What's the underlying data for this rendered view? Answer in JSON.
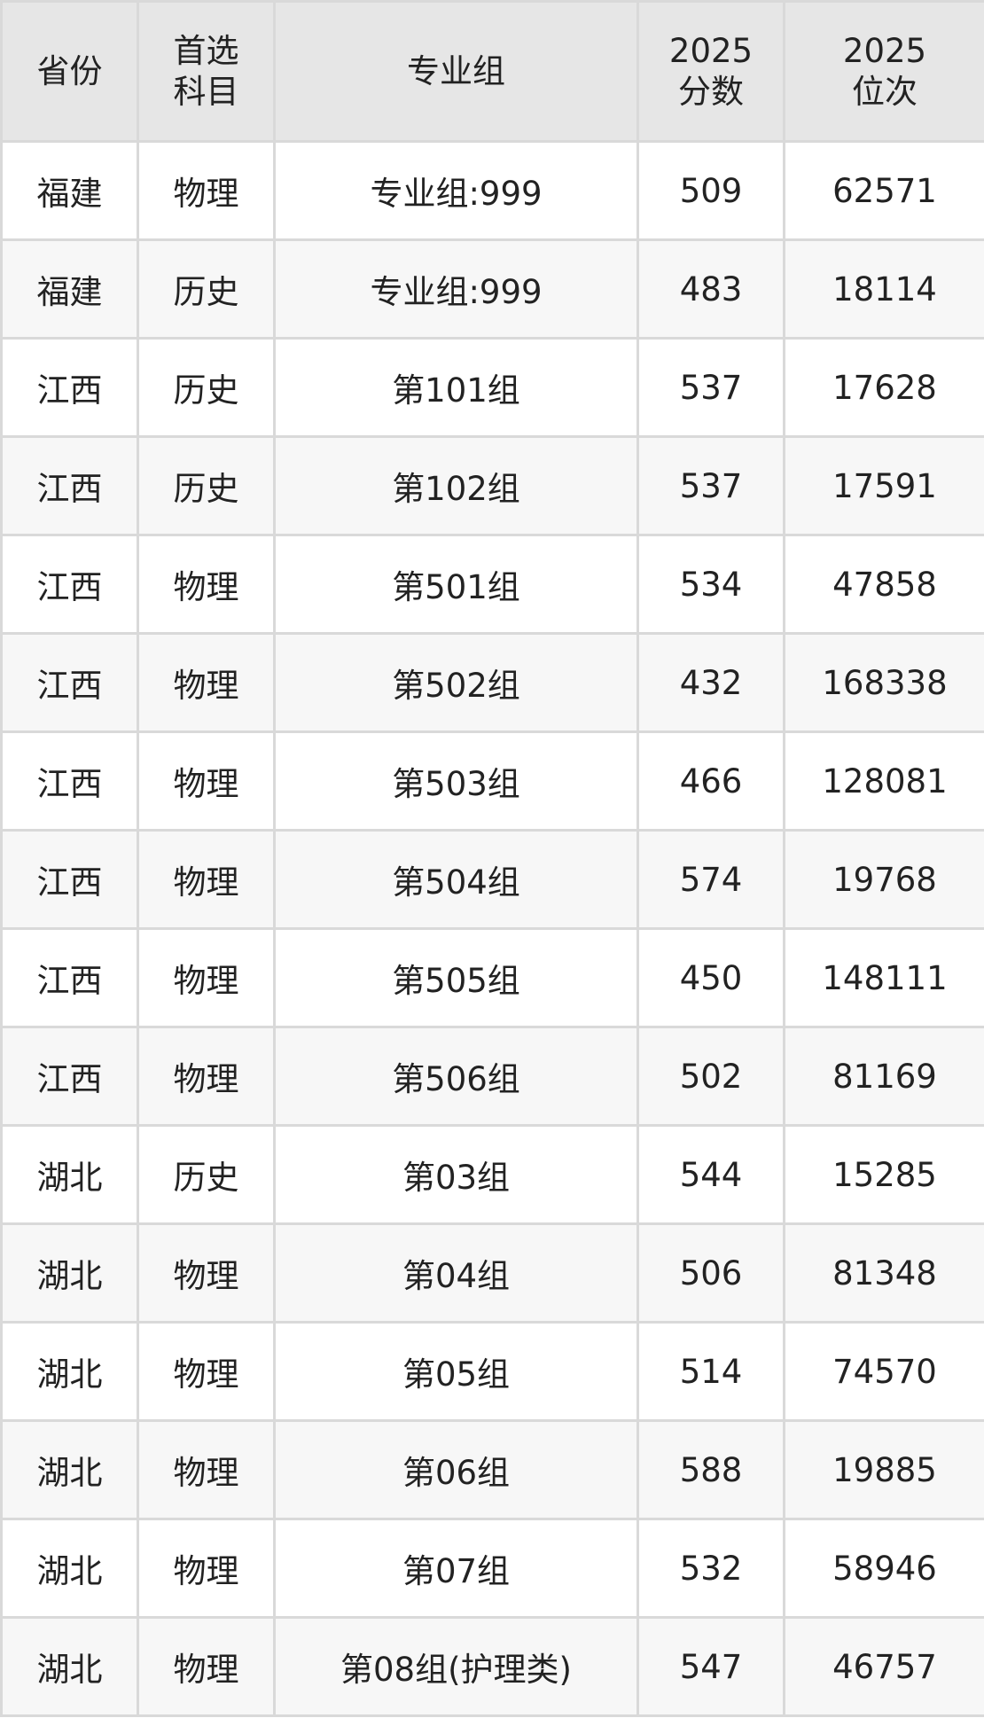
{
  "table": {
    "headers": [
      [
        "省份"
      ],
      [
        "首选",
        "科目"
      ],
      [
        "专业组"
      ],
      [
        "2025",
        "分数"
      ],
      [
        "2025",
        "位次"
      ]
    ],
    "rows": [
      [
        "福建",
        "物理",
        "专业组:999",
        "509",
        "62571"
      ],
      [
        "福建",
        "历史",
        "专业组:999",
        "483",
        "18114"
      ],
      [
        "江西",
        "历史",
        "第101组",
        "537",
        "17628"
      ],
      [
        "江西",
        "历史",
        "第102组",
        "537",
        "17591"
      ],
      [
        "江西",
        "物理",
        "第501组",
        "534",
        "47858"
      ],
      [
        "江西",
        "物理",
        "第502组",
        "432",
        "168338"
      ],
      [
        "江西",
        "物理",
        "第503组",
        "466",
        "128081"
      ],
      [
        "江西",
        "物理",
        "第504组",
        "574",
        "19768"
      ],
      [
        "江西",
        "物理",
        "第505组",
        "450",
        "148111"
      ],
      [
        "江西",
        "物理",
        "第506组",
        "502",
        "81169"
      ],
      [
        "湖北",
        "历史",
        "第03组",
        "544",
        "15285"
      ],
      [
        "湖北",
        "物理",
        "第04组",
        "506",
        "81348"
      ],
      [
        "湖北",
        "物理",
        "第05组",
        "514",
        "74570"
      ],
      [
        "湖北",
        "物理",
        "第06组",
        "588",
        "19885"
      ],
      [
        "湖北",
        "物理",
        "第07组",
        "532",
        "58946"
      ],
      [
        "湖北",
        "物理",
        "第08组(护理类)",
        "547",
        "46757"
      ]
    ]
  }
}
